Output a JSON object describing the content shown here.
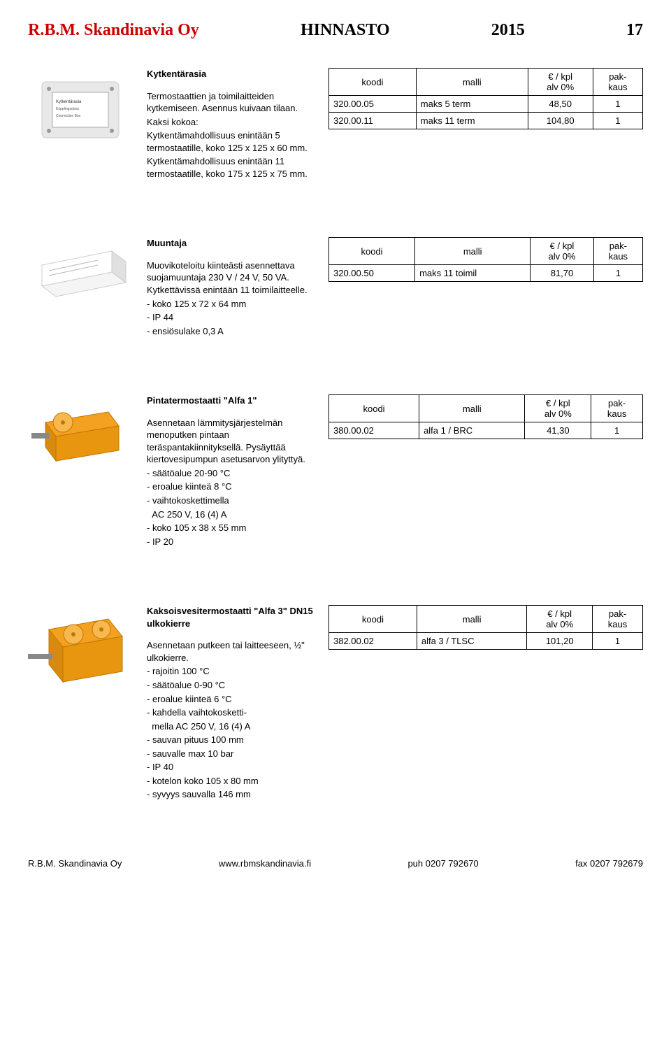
{
  "header": {
    "company": "R.B.M. Skandinavia Oy",
    "doc_title": "HINNASTO",
    "year": "2015",
    "page": "17",
    "company_color": "#cc0000"
  },
  "table_headers": {
    "code": "koodi",
    "model": "malli",
    "price": "€ / kpl\nalv 0%",
    "pack": "pak-\nkaus"
  },
  "products": [
    {
      "title": "Kytkentärasia",
      "desc_lines": [
        "Termostaattien ja toimilaitteiden kytkemiseen. Asennus kuivaan tilaan.",
        "Kaksi kokoa:",
        "Kytkentämahdollisuus enintään 5 termostaatille, koko 125 x 125 x 60 mm.",
        "Kytkentämahdollisuus enintään 11 termostaatille, koko 175 x 125 x 75 mm."
      ],
      "rows": [
        {
          "code": "320.00.05",
          "model": "maks 5 term",
          "price": "48,50",
          "pack": "1"
        },
        {
          "code": "320.00.11",
          "model": "maks 11 term",
          "price": "104,80",
          "pack": "1"
        }
      ],
      "img_type": "box"
    },
    {
      "title": "Muuntaja",
      "desc_lines": [
        "Muovikoteloitu kiinteästi asennettava suojamuuntaja 230 V / 24 V, 50 VA. Kytkettävissä enintään 11 toimilaitteelle.",
        "- koko 125 x 72 x 64 mm",
        "- IP 44",
        "- ensiösulake 0,3 A"
      ],
      "rows": [
        {
          "code": "320.00.50",
          "model": "maks 11 toimil",
          "price": "81,70",
          "pack": "1"
        }
      ],
      "img_type": "transformer"
    },
    {
      "title": "Pintatermostaatti \"Alfa 1\"",
      "desc_lines": [
        "Asennetaan lämmitysjärjestelmän menoputken pintaan teräspantakiinnityksellä. Pysäyttää kiertovesipumpun asetusarvon ylityttyä.",
        "- säätöalue 20-90 °C",
        "- eroalue kiinteä 8 °C",
        "- vaihtokoskettimella",
        "  AC 250 V, 16 (4) A",
        "- koko 105 x 38 x 55 mm",
        "- IP 20"
      ],
      "rows": [
        {
          "code": "380.00.02",
          "model": "alfa 1 / BRC",
          "price": "41,30",
          "pack": "1"
        }
      ],
      "img_type": "thermostat1"
    },
    {
      "title": "Kaksoisvesitermostaatti \"Alfa 3\" DN15 ulkokierre",
      "desc_lines": [
        "Asennetaan putkeen tai laitteeseen, ½\" ulkokierre.",
        "- rajoitin 100 °C",
        "- säätöalue 0-90 °C",
        "- eroalue kiinteä 6 °C",
        "- kahdella vaihtokosketti-",
        "  mella AC 250 V, 16 (4) A",
        "- sauvan pituus 100 mm",
        "- sauvalle max 10 bar",
        "- IP 40",
        "- kotelon koko 105 x 80 mm",
        "- syvyys sauvalla 146 mm"
      ],
      "rows": [
        {
          "code": "382.00.02",
          "model": "alfa 3 / TLSC",
          "price": "101,20",
          "pack": "1"
        }
      ],
      "img_type": "thermostat2"
    }
  ],
  "footer": {
    "company": "R.B.M. Skandinavia Oy",
    "url": "www.rbmskandinavia.fi",
    "phone": "puh 0207 792670",
    "fax": "fax 0207 792679"
  },
  "colors": {
    "orange": "#f4a020",
    "lightgrey": "#e8e8e8",
    "grey": "#cccccc"
  }
}
